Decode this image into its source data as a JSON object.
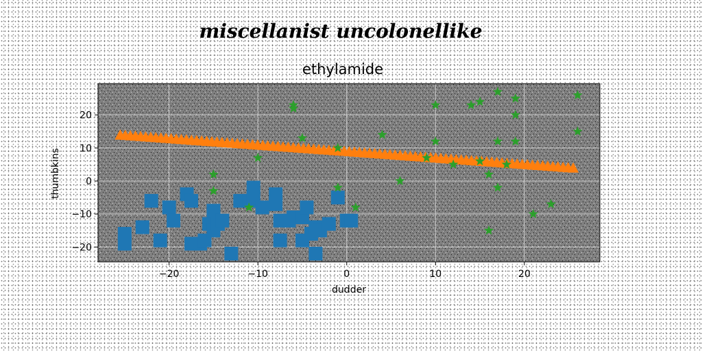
{
  "chart_data": {
    "type": "scatter",
    "suptitle": "miscellanist uncolonellike",
    "title": "ethylamide",
    "xlabel": "dudder",
    "ylabel": "thumbkins",
    "xlim": [
      -28,
      28.5
    ],
    "ylim": [
      -24.5,
      29.5
    ],
    "xticks": [
      -20,
      -10,
      0,
      10,
      20
    ],
    "yticks": [
      -20,
      -10,
      0,
      10,
      20
    ],
    "xtick_labels": [
      "−20",
      "−10",
      "0",
      "10",
      "20"
    ],
    "ytick_labels": [
      "−20",
      "−10",
      "0",
      "10",
      "20"
    ],
    "grid": true,
    "plot_background": "#808080",
    "series": [
      {
        "marker": "square",
        "color": "#1f77b4",
        "points": [
          [
            -25,
            -16
          ],
          [
            -25,
            -19
          ],
          [
            -23,
            -14
          ],
          [
            -22,
            -6
          ],
          [
            -21,
            -18
          ],
          [
            -20,
            -8
          ],
          [
            -19.5,
            -12
          ],
          [
            -18,
            -4
          ],
          [
            -17.5,
            -6
          ],
          [
            -17.5,
            -19
          ],
          [
            -16.5,
            -19
          ],
          [
            -16,
            -18
          ],
          [
            -15.5,
            -13
          ],
          [
            -15,
            -9
          ],
          [
            -15,
            -15
          ],
          [
            -14.5,
            -13
          ],
          [
            -14,
            -12
          ],
          [
            -13,
            -22
          ],
          [
            -12,
            -6
          ],
          [
            -11,
            -6
          ],
          [
            -10.5,
            -2
          ],
          [
            -10.5,
            -5
          ],
          [
            -9.5,
            -8
          ],
          [
            -8,
            -4
          ],
          [
            -8,
            -7
          ],
          [
            -7.5,
            -12
          ],
          [
            -7.5,
            -18
          ],
          [
            -6.5,
            -12
          ],
          [
            -6,
            -11
          ],
          [
            -5,
            -11
          ],
          [
            -5,
            -18
          ],
          [
            -4.5,
            -8
          ],
          [
            -4,
            -16
          ],
          [
            -3.5,
            -22
          ],
          [
            -3.5,
            -14
          ],
          [
            -3,
            -15
          ],
          [
            -2,
            -13
          ],
          [
            -1,
            -5
          ],
          [
            0,
            -12
          ],
          [
            0.5,
            -12
          ]
        ]
      },
      {
        "marker": "triangle",
        "color": "#ff7f0e",
        "line": {
          "x_from": -25.5,
          "x_to": 25.5,
          "y_from": 14,
          "y_to": 4,
          "count": 90
        }
      },
      {
        "marker": "star",
        "color": "#2ca02c",
        "points": [
          [
            -15,
            -3
          ],
          [
            -15,
            2
          ],
          [
            -11,
            -8
          ],
          [
            -10,
            7
          ],
          [
            -6,
            22
          ],
          [
            -6,
            23
          ],
          [
            -5,
            13
          ],
          [
            -1,
            -2
          ],
          [
            -1,
            10
          ],
          [
            1,
            -8
          ],
          [
            4,
            14
          ],
          [
            6,
            0
          ],
          [
            9,
            7
          ],
          [
            10,
            12
          ],
          [
            10,
            23
          ],
          [
            12,
            5
          ],
          [
            14,
            23
          ],
          [
            15,
            24
          ],
          [
            15,
            6
          ],
          [
            16,
            2
          ],
          [
            16,
            -15
          ],
          [
            17,
            27
          ],
          [
            17,
            -2
          ],
          [
            17,
            12
          ],
          [
            18,
            5
          ],
          [
            19,
            25
          ],
          [
            19,
            20
          ],
          [
            19,
            12
          ],
          [
            21,
            -10
          ],
          [
            23,
            -7
          ],
          [
            26,
            26
          ],
          [
            26,
            15
          ]
        ]
      }
    ]
  }
}
